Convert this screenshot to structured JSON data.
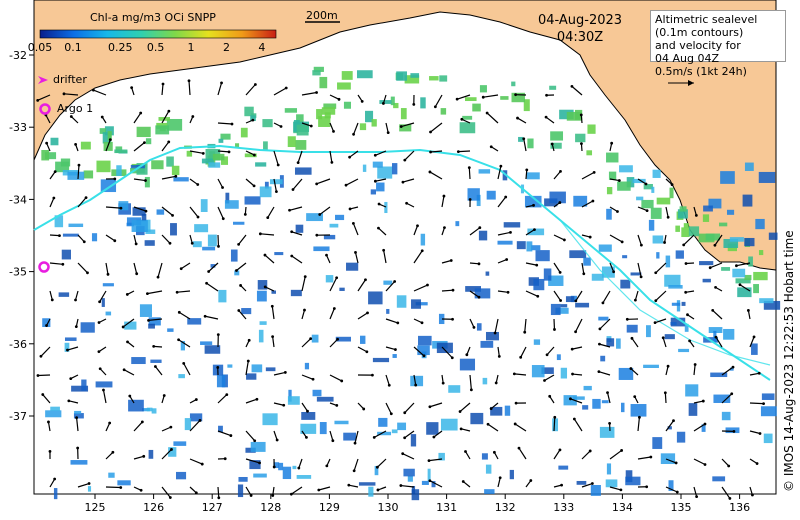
{
  "colorbar": {
    "title": "Chl-a mg/m3 OCi SNPP",
    "ticks": [
      "0.05",
      "0.1",
      "0.25",
      "0.5",
      "1",
      "2",
      "4"
    ],
    "colors": [
      "#0a1e8c",
      "#0b6ee6",
      "#17b8e8",
      "#2fd0b0",
      "#7fd84a",
      "#e6e01e",
      "#f09a18",
      "#c81e14"
    ]
  },
  "scale_bar": {
    "label": "200m"
  },
  "date": {
    "day": "04-Aug-2023",
    "time": "04:30Z"
  },
  "legend": {
    "text": "Altimetric sealevel\n(0.1m contours)\nand velocity for\n04 Aug 04Z\n0.5m/s (1kt 24h)"
  },
  "markers": {
    "drifter_label": "drifter",
    "argo_label": "Argo 1"
  },
  "axes": {
    "x_ticks": [
      "125",
      "126",
      "127",
      "128",
      "129",
      "130",
      "131",
      "132",
      "133",
      "134",
      "135",
      "136"
    ],
    "y_ticks": [
      "-32",
      "-33",
      "-34",
      "-35",
      "-36",
      "-37"
    ]
  },
  "credit": "© IMOS 14-Aug-2023 12:22:53 Hobart time",
  "colors": {
    "land": "#f7c896",
    "ocean": "#ffffff",
    "contour": "#39e0e8",
    "arrow": "#000000",
    "marker": "#e81ee0"
  }
}
